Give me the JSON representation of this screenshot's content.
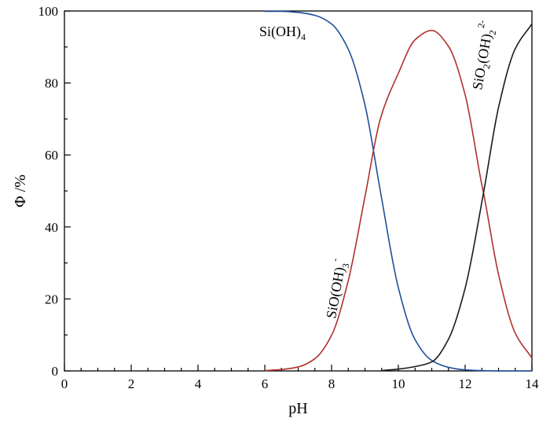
{
  "chart_data": {
    "type": "line",
    "xlabel": "pH",
    "ylabel": "Φ /%",
    "xlim": [
      0,
      14
    ],
    "ylim": [
      0,
      100
    ],
    "x_ticks": [
      0,
      2,
      4,
      6,
      8,
      10,
      12,
      14
    ],
    "y_ticks": [
      0,
      20,
      40,
      60,
      80,
      100
    ],
    "minor_x_step": 0.5,
    "minor_y_step": 10,
    "grid": false,
    "legend": "none",
    "series": [
      {
        "name": "Si(OH)4",
        "label_text": {
          "base": "Si(OH)",
          "sub": "4",
          "sup": ""
        },
        "color": "#1f4e9c",
        "x": [
          6.0,
          6.5,
          7.0,
          7.5,
          8.0,
          8.5,
          9.0,
          9.46,
          10.0,
          10.5,
          11.0,
          11.5,
          12.0,
          12.5,
          13.0,
          14.0
        ],
        "y": [
          99.9,
          99.9,
          99.6,
          98.8,
          96.4,
          89.4,
          73.9,
          50.0,
          23.1,
          8.7,
          2.9,
          1.0,
          0.3,
          0.1,
          0.0,
          0.0
        ]
      },
      {
        "name": "SiO(OH)3-",
        "label_text": {
          "base": "SiO(OH)",
          "sub": "3",
          "sup": "-"
        },
        "color": "#b0302c",
        "x": [
          6.0,
          6.5,
          7.0,
          7.5,
          8.0,
          8.5,
          9.0,
          9.46,
          10.0,
          10.5,
          11.0,
          11.5,
          12.0,
          12.5,
          12.56,
          13.0,
          13.5,
          14.0
        ],
        "y": [
          0.1,
          0.4,
          1.1,
          3.4,
          9.9,
          25.1,
          48.4,
          70.0,
          82.7,
          92.0,
          94.6,
          90.2,
          76.7,
          51.7,
          49.0,
          26.8,
          10.5,
          3.6
        ]
      },
      {
        "name": "SiO2(OH)2 2-",
        "label_text": {
          "base": "SiO",
          "sub": "2",
          "mid": "(OH)",
          "sub2": "2",
          "sup": "2-"
        },
        "color": "#1a1a1a",
        "x": [
          9.5,
          10.0,
          10.5,
          11.0,
          11.5,
          12.0,
          12.56,
          13.0,
          13.5,
          14.0
        ],
        "y": [
          0.1,
          0.5,
          1.2,
          2.5,
          8.8,
          23.0,
          50.0,
          73.2,
          89.5,
          96.4
        ]
      }
    ]
  }
}
